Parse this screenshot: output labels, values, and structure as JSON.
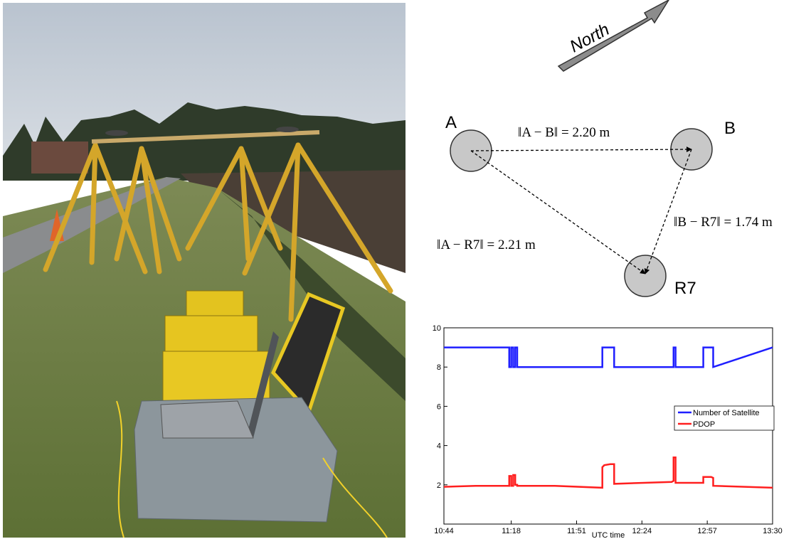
{
  "diagram": {
    "north_label": "North",
    "nodes": [
      {
        "id": "A",
        "label": "A"
      },
      {
        "id": "B",
        "label": "B"
      },
      {
        "id": "R7",
        "label": "R7"
      }
    ],
    "distances": {
      "ab": "‖A − B‖ = 2.20 m",
      "ar7": "‖A − R7‖ = 2.21 m",
      "br7": "‖B − R7‖ = 1.74 m"
    }
  },
  "chart_data": {
    "type": "line",
    "xlabel": "UTC time",
    "ylabel": "",
    "x_ticks": [
      "10:44",
      "11:18",
      "11:51",
      "12:24",
      "12:57",
      "13:30"
    ],
    "x_tick_minutes": [
      644,
      678,
      711,
      744,
      777,
      810
    ],
    "y_ticks": [
      "2",
      "4",
      "6",
      "8",
      "10"
    ],
    "y_tick_values": [
      2,
      4,
      6,
      8,
      10
    ],
    "xlim": [
      "10:44",
      "13:30"
    ],
    "ylim": [
      0,
      10
    ],
    "legend": "right",
    "series": [
      {
        "name": "Number of Satellite",
        "color": "#1f1fff",
        "x": [
          "10:44",
          "11:17",
          "11:17",
          "11:18",
          "11:18",
          "11:19",
          "11:19",
          "11:20",
          "11:20",
          "11:21",
          "11:21",
          "12:04",
          "12:04",
          "12:10",
          "12:10",
          "12:40",
          "12:40",
          "12:41",
          "12:41",
          "12:55",
          "12:55",
          "13:00",
          "13:00",
          "13:30"
        ],
        "y": [
          9,
          9,
          8,
          8,
          9,
          9,
          8,
          8,
          9,
          9,
          8,
          8,
          9,
          9,
          8,
          8,
          9,
          9,
          8,
          8,
          9,
          9,
          8,
          9
        ]
      },
      {
        "name": "PDOP",
        "color": "#ff1f1f",
        "x": [
          "10:44",
          "11:00",
          "11:17",
          "11:17",
          "11:18",
          "11:18",
          "11:19",
          "11:19",
          "11:20",
          "11:20",
          "11:21",
          "11:21",
          "11:40",
          "12:04",
          "12:04",
          "12:05",
          "12:08",
          "12:10",
          "12:10",
          "12:25",
          "12:39",
          "12:40",
          "12:40",
          "12:41",
          "12:41",
          "12:55",
          "12:55",
          "12:59",
          "13:00",
          "13:00",
          "13:30"
        ],
        "y": [
          1.9,
          1.95,
          1.95,
          2.45,
          2.45,
          1.95,
          1.95,
          2.5,
          2.5,
          2.0,
          2.0,
          1.95,
          1.95,
          1.85,
          2.9,
          3.0,
          3.05,
          3.05,
          2.05,
          2.1,
          2.15,
          2.2,
          3.4,
          3.4,
          2.1,
          2.1,
          2.4,
          2.4,
          2.35,
          1.95,
          1.85
        ]
      }
    ]
  }
}
